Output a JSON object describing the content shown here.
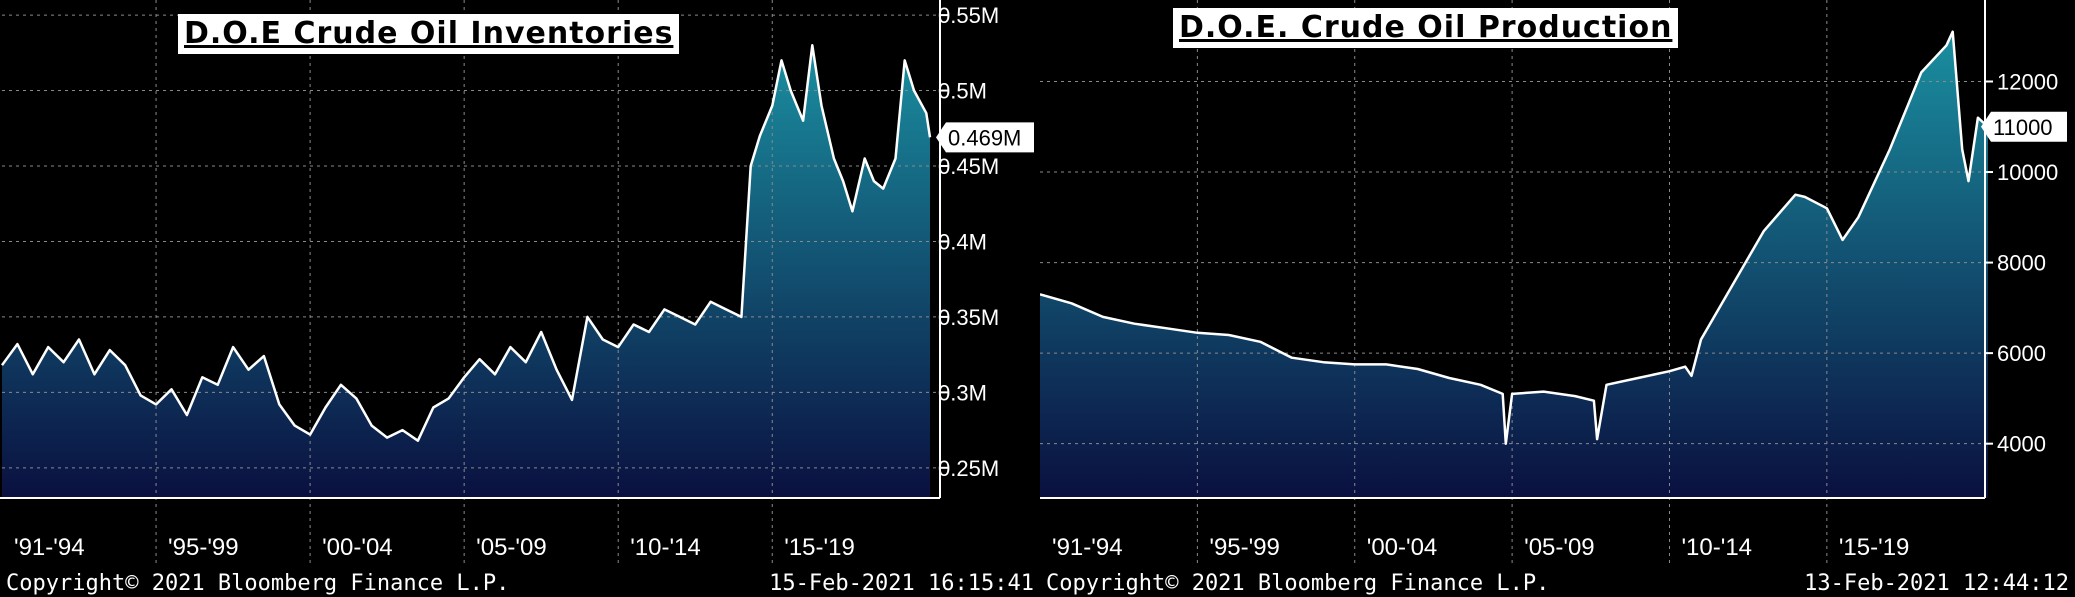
{
  "charts": [
    {
      "title": "D.O.E Crude Oil Inventories",
      "last_value_label": "0.469M",
      "copyright": "Copyright© 2021 Bloomberg Finance L.P.",
      "timestamp": "15-Feb-2021  16:15:41",
      "colors": {
        "line": "#ffffff",
        "fill_top": "#1a8fa0",
        "fill_bottom": "#0a1040",
        "grid": "#8a8a8a"
      }
    },
    {
      "title": "D.O.E. Crude Oil Production",
      "last_value_label": "11000",
      "copyright": "Copyright© 2021 Bloomberg Finance L.P.",
      "timestamp": "13-Feb-2021  12:44:12",
      "colors": {
        "line": "#ffffff",
        "fill_top": "#1a8fa0",
        "fill_bottom": "#0a1040",
        "grid": "#8a8a8a"
      }
    }
  ],
  "chart_data": [
    {
      "type": "area",
      "title": "D.O.E Crude Oil Inventories",
      "y_unit": "M",
      "ylim": [
        0.23,
        0.56
      ],
      "yticks": [
        0.25,
        0.3,
        0.35,
        0.4,
        0.45,
        0.5,
        0.55
      ],
      "ytick_labels": [
        "0.25M",
        "0.3M",
        "0.35M",
        "0.4M",
        "0.45M",
        "0.5M",
        "0.55M"
      ],
      "xlim": [
        1991.0,
        2021.12
      ],
      "x_tick_positions": [
        1991,
        1996,
        2001,
        2006,
        2011,
        2016
      ],
      "x_tick_labels": [
        "'91-'94",
        "'95-'99",
        "'00-'04",
        "'05-'09",
        "'10-'14",
        "'15-'19"
      ],
      "grid": true,
      "last_value": 0.469,
      "x": [
        1991.0,
        1991.5,
        1992.0,
        1992.5,
        1993.0,
        1993.5,
        1994.0,
        1994.5,
        1995.0,
        1995.5,
        1996.0,
        1996.5,
        1997.0,
        1997.5,
        1998.0,
        1998.5,
        1999.0,
        1999.5,
        2000.0,
        2000.5,
        2001.0,
        2001.5,
        2002.0,
        2002.5,
        2003.0,
        2003.5,
        2004.0,
        2004.5,
        2005.0,
        2005.5,
        2006.0,
        2006.5,
        2007.0,
        2007.5,
        2008.0,
        2008.5,
        2009.0,
        2009.5,
        2010.0,
        2010.5,
        2011.0,
        2011.5,
        2012.0,
        2012.5,
        2013.0,
        2013.5,
        2014.0,
        2014.5,
        2015.0,
        2015.3,
        2015.6,
        2016.0,
        2016.3,
        2016.6,
        2017.0,
        2017.3,
        2017.6,
        2018.0,
        2018.3,
        2018.6,
        2019.0,
        2019.3,
        2019.6,
        2020.0,
        2020.3,
        2020.6,
        2021.0,
        2021.12
      ],
      "y": [
        0.318,
        0.332,
        0.312,
        0.33,
        0.32,
        0.335,
        0.312,
        0.328,
        0.318,
        0.298,
        0.292,
        0.302,
        0.285,
        0.31,
        0.305,
        0.33,
        0.315,
        0.324,
        0.292,
        0.278,
        0.272,
        0.29,
        0.305,
        0.296,
        0.278,
        0.27,
        0.275,
        0.268,
        0.29,
        0.296,
        0.31,
        0.322,
        0.312,
        0.33,
        0.32,
        0.34,
        0.315,
        0.295,
        0.35,
        0.335,
        0.33,
        0.345,
        0.34,
        0.355,
        0.35,
        0.345,
        0.36,
        0.355,
        0.35,
        0.45,
        0.47,
        0.49,
        0.52,
        0.5,
        0.48,
        0.53,
        0.49,
        0.455,
        0.44,
        0.42,
        0.455,
        0.44,
        0.435,
        0.455,
        0.52,
        0.5,
        0.485,
        0.469
      ]
    },
    {
      "type": "area",
      "title": "D.O.E. Crude Oil Production",
      "ylim": [
        2800,
        13800
      ],
      "yticks": [
        4000,
        6000,
        8000,
        10000,
        12000
      ],
      "ytick_labels": [
        "4000",
        "6000",
        "8000",
        "10000",
        "12000"
      ],
      "xlim": [
        1991.0,
        2021.12
      ],
      "x_tick_positions": [
        1991,
        1996,
        2001,
        2006,
        2011,
        2016
      ],
      "x_tick_labels": [
        "'91-'94",
        "'95-'99",
        "'00-'04",
        "'05-'09",
        "'10-'14",
        "'15-'19"
      ],
      "grid": true,
      "last_value": 11000,
      "x": [
        1991.0,
        1992.0,
        1993.0,
        1994.0,
        1995.0,
        1996.0,
        1997.0,
        1998.0,
        1999.0,
        2000.0,
        2001.0,
        2002.0,
        2003.0,
        2004.0,
        2005.0,
        2005.7,
        2005.8,
        2006.0,
        2007.0,
        2008.0,
        2008.6,
        2008.7,
        2009.0,
        2010.0,
        2011.0,
        2011.5,
        2011.7,
        2012.0,
        2013.0,
        2014.0,
        2015.0,
        2015.3,
        2016.0,
        2016.5,
        2017.0,
        2018.0,
        2019.0,
        2019.8,
        2020.0,
        2020.3,
        2020.5,
        2020.8,
        2021.12
      ],
      "y": [
        7300,
        7100,
        6800,
        6650,
        6550,
        6450,
        6400,
        6250,
        5900,
        5800,
        5750,
        5750,
        5650,
        5450,
        5300,
        5100,
        4000,
        5100,
        5150,
        5050,
        4950,
        4100,
        5300,
        5450,
        5600,
        5700,
        5500,
        6300,
        7500,
        8700,
        9500,
        9450,
        9200,
        8500,
        9000,
        10500,
        12200,
        12800,
        13100,
        10500,
        9800,
        11200,
        11000
      ]
    }
  ]
}
